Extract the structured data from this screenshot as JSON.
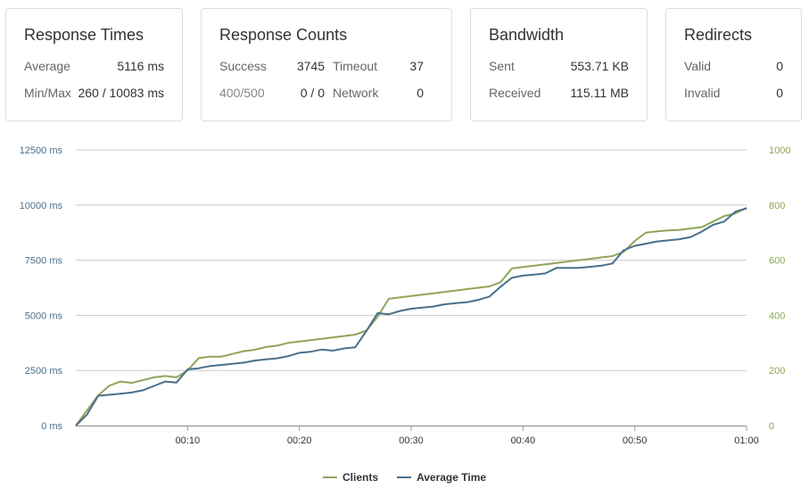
{
  "cards": {
    "response_times": {
      "title": "Response Times",
      "average_label": "Average",
      "average_value": "5116 ms",
      "minmax_label": "Min/Max",
      "minmax_value": "260 / 10083 ms"
    },
    "response_counts": {
      "title": "Response Counts",
      "success_label": "Success",
      "success_value": "3745",
      "timeout_label": "Timeout",
      "timeout_value": "37",
      "err_label": "400/500",
      "err_value": "0 / 0",
      "network_label": "Network",
      "network_value": "0"
    },
    "bandwidth": {
      "title": "Bandwidth",
      "sent_label": "Sent",
      "sent_value": "553.71 KB",
      "received_label": "Received",
      "received_value": "115.11 MB"
    },
    "redirects": {
      "title": "Redirects",
      "valid_label": "Valid",
      "valid_value": "0",
      "invalid_label": "Invalid",
      "invalid_value": "0"
    }
  },
  "colors": {
    "clients": "#8fa55a",
    "average_time": "#4a6f8a",
    "left_axis_text": "#4a6f8a",
    "right_axis_text": "#8fa55a",
    "grid": "#cccccc"
  },
  "chart_data": {
    "type": "line",
    "x_ticks": [
      "00:10",
      "00:20",
      "00:30",
      "00:40",
      "00:50",
      "01:00"
    ],
    "x_tick_values": [
      10,
      20,
      30,
      40,
      50,
      60
    ],
    "xlim": [
      0,
      60
    ],
    "y_left_ticks": [
      "0 ms",
      "2500 ms",
      "5000 ms",
      "7500 ms",
      "10000 ms",
      "12500 ms"
    ],
    "y_left_values": [
      0,
      2500,
      5000,
      7500,
      10000,
      12500
    ],
    "ylim_left": [
      0,
      12500
    ],
    "y_right_ticks": [
      "0",
      "200",
      "400",
      "600",
      "800",
      "1000"
    ],
    "y_right_values": [
      0,
      200,
      400,
      600,
      800,
      1000
    ],
    "ylim_right": [
      0,
      1000
    ],
    "grid": true,
    "legend_position": "bottom",
    "series": [
      {
        "name": "Clients",
        "axis": "right",
        "x": [
          0,
          1,
          2,
          3,
          4,
          5,
          6,
          7,
          8,
          9,
          10,
          11,
          12,
          13,
          14,
          15,
          16,
          17,
          18,
          19,
          20,
          21,
          22,
          23,
          24,
          25,
          26,
          27,
          28,
          29,
          30,
          31,
          32,
          33,
          34,
          35,
          36,
          37,
          38,
          39,
          40,
          41,
          42,
          43,
          44,
          45,
          46,
          47,
          48,
          49,
          50,
          51,
          52,
          53,
          54,
          55,
          56,
          57,
          58,
          59,
          60
        ],
        "values": [
          0,
          55,
          110,
          145,
          160,
          155,
          165,
          175,
          180,
          175,
          200,
          245,
          250,
          250,
          260,
          270,
          275,
          285,
          290,
          300,
          305,
          310,
          315,
          320,
          325,
          330,
          345,
          395,
          460,
          465,
          470,
          475,
          480,
          485,
          490,
          495,
          500,
          505,
          520,
          570,
          575,
          580,
          585,
          590,
          595,
          600,
          605,
          610,
          615,
          630,
          670,
          700,
          705,
          708,
          710,
          715,
          720,
          740,
          760,
          770,
          790
        ]
      },
      {
        "name": "Average Time",
        "axis": "left",
        "x": [
          0,
          1,
          2,
          3,
          4,
          5,
          6,
          7,
          8,
          9,
          10,
          11,
          12,
          13,
          14,
          15,
          16,
          17,
          18,
          19,
          20,
          21,
          22,
          23,
          24,
          25,
          26,
          27,
          28,
          29,
          30,
          31,
          32,
          33,
          34,
          35,
          36,
          37,
          38,
          39,
          40,
          41,
          42,
          43,
          44,
          45,
          46,
          47,
          48,
          49,
          50,
          51,
          52,
          53,
          54,
          55,
          56,
          57,
          58,
          59,
          60
        ],
        "values": [
          0,
          500,
          1350,
          1400,
          1450,
          1500,
          1600,
          1800,
          2000,
          1950,
          2550,
          2600,
          2700,
          2750,
          2800,
          2850,
          2950,
          3000,
          3050,
          3150,
          3300,
          3350,
          3450,
          3400,
          3500,
          3550,
          4300,
          5100,
          5050,
          5200,
          5300,
          5350,
          5400,
          5500,
          5550,
          5600,
          5700,
          5850,
          6300,
          6700,
          6800,
          6850,
          6900,
          7150,
          7150,
          7150,
          7200,
          7250,
          7350,
          7950,
          8150,
          8250,
          8350,
          8400,
          8450,
          8550,
          8800,
          9100,
          9250,
          9700,
          9850
        ]
      }
    ]
  }
}
